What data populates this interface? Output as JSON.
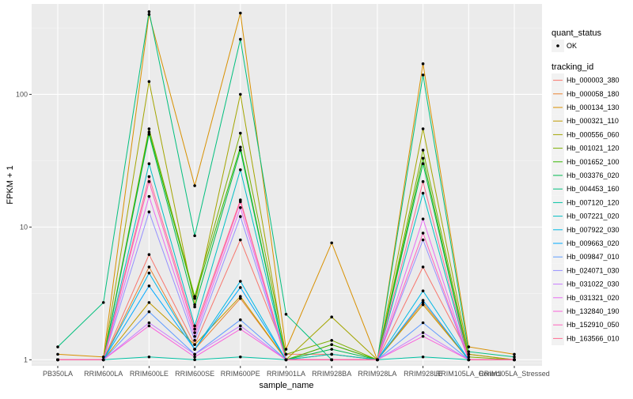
{
  "chart_data": {
    "type": "line",
    "xlabel": "sample_name",
    "ylabel": "FPKM + 1",
    "y_scale": "log10",
    "ylim": [
      0.9,
      480
    ],
    "y_ticks": [
      1,
      10,
      100
    ],
    "y_tick_labels": [
      "1",
      "10",
      "100"
    ],
    "grid": true,
    "legend_position": "right",
    "categories": [
      "PB350LA",
      "RRIM600LA",
      "RRIM600LE",
      "RRIM600SE",
      "RRIM600PE",
      "RRIM901LA",
      "RRIM928BA",
      "RRIM928LA",
      "RRIM928LE",
      "RRIM105LA_Control",
      "RRIM105LA_Stressed"
    ],
    "quant_status_legend": {
      "title": "quant_status",
      "entries": [
        "OK"
      ]
    },
    "tracking_legend_title": "tracking_id",
    "series": [
      {
        "name": "Hb_000003_380",
        "color": "#F8766D",
        "values": [
          1.0,
          1.0,
          6.2,
          1.3,
          8.0,
          1.1,
          1.1,
          1.0,
          5.0,
          1.1,
          1.0
        ]
      },
      {
        "name": "Hb_000058_180",
        "color": "#EA8331",
        "values": [
          1.0,
          1.0,
          5.0,
          1.2,
          2.9,
          1.0,
          1.3,
          1.0,
          2.7,
          1.0,
          1.0
        ]
      },
      {
        "name": "Hb_000134_130",
        "color": "#D89000",
        "values": [
          1.1,
          1.05,
          400,
          20.5,
          410,
          1.2,
          7.6,
          1.0,
          170,
          1.25,
          1.1
        ]
      },
      {
        "name": "Hb_000321_110",
        "color": "#C09B00",
        "values": [
          1.0,
          1.0,
          2.7,
          1.3,
          3.0,
          1.0,
          1.1,
          1.0,
          2.6,
          1.0,
          1.0
        ]
      },
      {
        "name": "Hb_000556_060",
        "color": "#A3A500",
        "values": [
          1.0,
          1.0,
          125,
          2.6,
          100,
          1.0,
          2.1,
          1.0,
          55,
          1.1,
          1.0
        ]
      },
      {
        "name": "Hb_001021_120",
        "color": "#7CAE00",
        "values": [
          1.0,
          1.0,
          55,
          3.0,
          51,
          1.1,
          1.4,
          1.0,
          38,
          1.05,
          1.0
        ]
      },
      {
        "name": "Hb_001652_100",
        "color": "#39B600",
        "values": [
          1.0,
          1.0,
          52,
          2.9,
          40,
          1.0,
          1.3,
          1.0,
          33,
          1.0,
          1.0
        ]
      },
      {
        "name": "Hb_003376_020",
        "color": "#00BB4E",
        "values": [
          1.0,
          1.0,
          50,
          2.5,
          38,
          1.0,
          1.2,
          1.0,
          30,
          1.0,
          1.0
        ]
      },
      {
        "name": "Hb_004453_160",
        "color": "#00BF7D",
        "values": [
          1.25,
          2.7,
          420,
          8.6,
          260,
          2.2,
          1.0,
          1.0,
          140,
          1.15,
          1.05
        ]
      },
      {
        "name": "Hb_007120_120",
        "color": "#00C1A3",
        "values": [
          1.0,
          1.0,
          1.05,
          1.0,
          1.05,
          1.0,
          1.0,
          1.0,
          1.05,
          1.0,
          1.0
        ]
      },
      {
        "name": "Hb_007221_020",
        "color": "#00BFC4",
        "values": [
          1.0,
          1.0,
          30,
          1.8,
          27,
          1.0,
          1.1,
          1.0,
          18,
          1.0,
          1.0
        ]
      },
      {
        "name": "Hb_007922_030",
        "color": "#00B8E5",
        "values": [
          1.0,
          1.0,
          4.5,
          1.2,
          3.9,
          1.0,
          1.0,
          1.0,
          3.3,
          1.0,
          1.0
        ]
      },
      {
        "name": "Hb_009663_020",
        "color": "#00A9FF",
        "values": [
          1.0,
          1.0,
          3.6,
          1.2,
          3.5,
          1.0,
          1.0,
          1.0,
          2.8,
          1.0,
          1.0
        ]
      },
      {
        "name": "Hb_009847_010",
        "color": "#619CFF",
        "values": [
          1.0,
          1.0,
          2.3,
          1.1,
          2.0,
          1.0,
          1.0,
          1.0,
          1.9,
          1.0,
          1.0
        ]
      },
      {
        "name": "Hb_024071_030",
        "color": "#9590FF",
        "values": [
          1.0,
          1.0,
          13,
          1.4,
          12,
          1.0,
          1.0,
          1.0,
          8.0,
          1.0,
          1.0
        ]
      },
      {
        "name": "Hb_031022_030",
        "color": "#C77CFF",
        "values": [
          1.0,
          1.0,
          1.9,
          1.1,
          1.8,
          1.0,
          1.0,
          1.0,
          1.6,
          1.0,
          1.0
        ]
      },
      {
        "name": "Hb_031321_020",
        "color": "#E76BF3",
        "values": [
          1.0,
          1.0,
          17,
          1.5,
          14,
          1.0,
          1.0,
          1.0,
          11.5,
          1.0,
          1.0
        ]
      },
      {
        "name": "Hb_132840_190",
        "color": "#FA62DB",
        "values": [
          1.0,
          1.0,
          1.8,
          1.05,
          1.7,
          1.0,
          1.0,
          1.0,
          1.5,
          1.0,
          1.0
        ]
      },
      {
        "name": "Hb_152910_050",
        "color": "#FF62BC",
        "values": [
          1.0,
          1.0,
          22,
          1.6,
          15.5,
          1.0,
          1.0,
          1.0,
          9.0,
          1.0,
          1.0
        ]
      },
      {
        "name": "Hb_163566_010",
        "color": "#FF6C91",
        "values": [
          1.0,
          1.0,
          24,
          1.7,
          16,
          1.0,
          1.0,
          1.0,
          22,
          1.0,
          1.0
        ]
      }
    ]
  }
}
